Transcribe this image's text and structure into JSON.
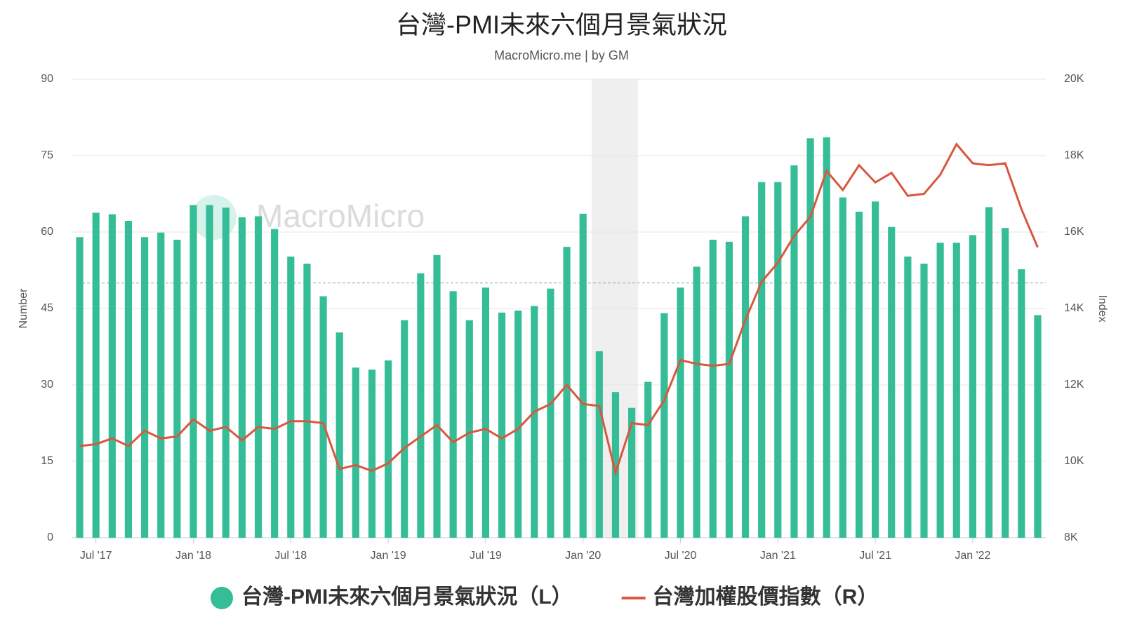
{
  "chart_data": {
    "type": "bar_line",
    "title": "台灣-PMI未來六個月景氣狀況",
    "subtitle": "MacroMicro.me | by GM",
    "watermark": "MacroMicro",
    "y_label": "Number",
    "y2_label": "Index",
    "categories": [
      null,
      "Jul '17",
      null,
      null,
      null,
      null,
      null,
      "Jan '18",
      null,
      null,
      null,
      null,
      null,
      "Jul '18",
      null,
      null,
      null,
      null,
      null,
      "Jan '19",
      null,
      null,
      null,
      null,
      null,
      "Jul '19",
      null,
      null,
      null,
      null,
      null,
      "Jan '20",
      null,
      null,
      null,
      null,
      null,
      "Jul '20",
      null,
      null,
      null,
      null,
      null,
      "Jan '21",
      null,
      null,
      null,
      null,
      null,
      "Jul '21",
      null,
      null,
      null,
      null,
      null,
      "Jan '22",
      null,
      null,
      null,
      null
    ],
    "series": [
      {
        "name": "台灣-PMI未來六個月景氣狀況（L）",
        "color": "#35bd97",
        "kind": "bar",
        "values": [
          59,
          63.8,
          63.5,
          62.2,
          59,
          59.9,
          58.5,
          65.3,
          65.3,
          64.8,
          62.9,
          63.1,
          60.6,
          55.2,
          53.8,
          47.4,
          40.3,
          33.4,
          33,
          34.8,
          42.7,
          51.9,
          55.5,
          48.4,
          42.7,
          49.1,
          44.2,
          44.6,
          45.5,
          48.9,
          57.1,
          63.6,
          36.6,
          28.6,
          25.5,
          30.6,
          44.1,
          49.1,
          53.2,
          58.5,
          58.1,
          63.1,
          69.8,
          69.8,
          73.1,
          78.4,
          78.6,
          66.8,
          64,
          66,
          61,
          55.2,
          53.8,
          57.9,
          57.9,
          59.4,
          64.9,
          60.8,
          52.7,
          43.7
        ]
      },
      {
        "name": "台灣加權股價指數（R）",
        "color": "#d9573f",
        "kind": "line",
        "axis": "y2",
        "values": [
          10400,
          10450,
          10600,
          10400,
          10800,
          10600,
          10650,
          11100,
          10800,
          10900,
          10550,
          10900,
          10850,
          11050,
          11050,
          11000,
          9800,
          9900,
          9750,
          9950,
          10350,
          10650,
          10950,
          10500,
          10750,
          10850,
          10600,
          10850,
          11300,
          11500,
          12000,
          11500,
          11450,
          9700,
          11000,
          10950,
          11600,
          12650,
          12550,
          12500,
          12550,
          13700,
          14700,
          15200,
          15900,
          16400,
          17600,
          17100,
          17750,
          17300,
          17550,
          16950,
          17000,
          17500,
          18300,
          17800,
          17750,
          17800,
          16600,
          15600
        ]
      }
    ],
    "reference_line": 50,
    "ylim": [
      0,
      90
    ],
    "yticks": [
      0,
      15,
      30,
      45,
      60,
      75,
      90
    ],
    "y2lim": [
      8000,
      20000
    ],
    "y2ticks": [
      {
        "value": 8000,
        "label": "8K"
      },
      {
        "value": 10000,
        "label": "10K"
      },
      {
        "value": 12000,
        "label": "12K"
      },
      {
        "value": 14000,
        "label": "14K"
      },
      {
        "value": 16000,
        "label": "16K"
      },
      {
        "value": 18000,
        "label": "18K"
      },
      {
        "value": 20000,
        "label": "20K"
      }
    ],
    "grid": true
  }
}
